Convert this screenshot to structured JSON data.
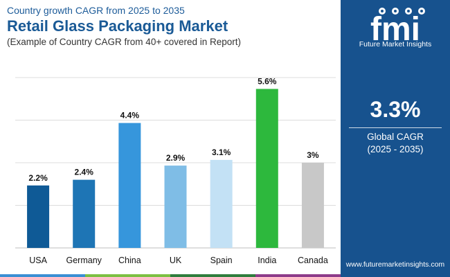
{
  "header": {
    "subtitle": "Country growth CAGR from 2025 to 2035",
    "title": "Retail Glass Packaging Market",
    "note": "(Example of Country CAGR from 40+ covered in Report)"
  },
  "sidebar": {
    "logo_text": "Future Market Insights",
    "global_value": "3.3%",
    "global_label": "Global CAGR",
    "global_period": "(2025 - 2035)",
    "url": "www.futuremarketinsights.com"
  },
  "colors": {
    "sidebar": "#17528e",
    "title": "#1a5a96",
    "grid": "#dcdcdc",
    "bottom_bar": [
      "#3a8fd3",
      "#7cc042",
      "#2f7d3d",
      "#8e3b8a"
    ]
  },
  "chart_data": {
    "type": "bar",
    "title": "Retail Glass Packaging Market",
    "xlabel": "",
    "ylabel": "",
    "ylim": [
      0,
      6
    ],
    "unit": "%",
    "grid": true,
    "categories": [
      "USA",
      "Germany",
      "China",
      "UK",
      "Spain",
      "India",
      "Canada"
    ],
    "values": [
      2.2,
      2.4,
      4.4,
      2.9,
      3.1,
      5.6,
      3.0
    ],
    "labels": [
      "2.2%",
      "2.4%",
      "4.4%",
      "2.9%",
      "3.1%",
      "5.6%",
      "3%"
    ],
    "colors": [
      "#0f5a96",
      "#1e75b5",
      "#3696dc",
      "#7fbde6",
      "#c3e1f5",
      "#2db83d",
      "#c8c8c8"
    ]
  }
}
